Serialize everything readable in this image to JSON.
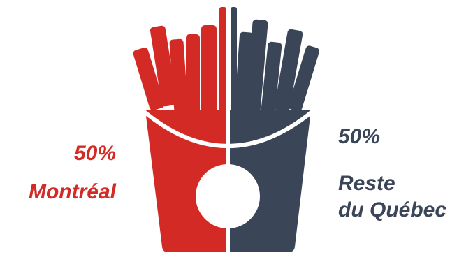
{
  "chart_data": {
    "type": "pie",
    "categories": [
      "Montréal",
      "Reste\ndu Québec"
    ],
    "values": [
      50,
      50
    ],
    "value_labels": [
      "50%",
      "50%"
    ],
    "colors": [
      "#d42a25",
      "#3a4657"
    ]
  }
}
